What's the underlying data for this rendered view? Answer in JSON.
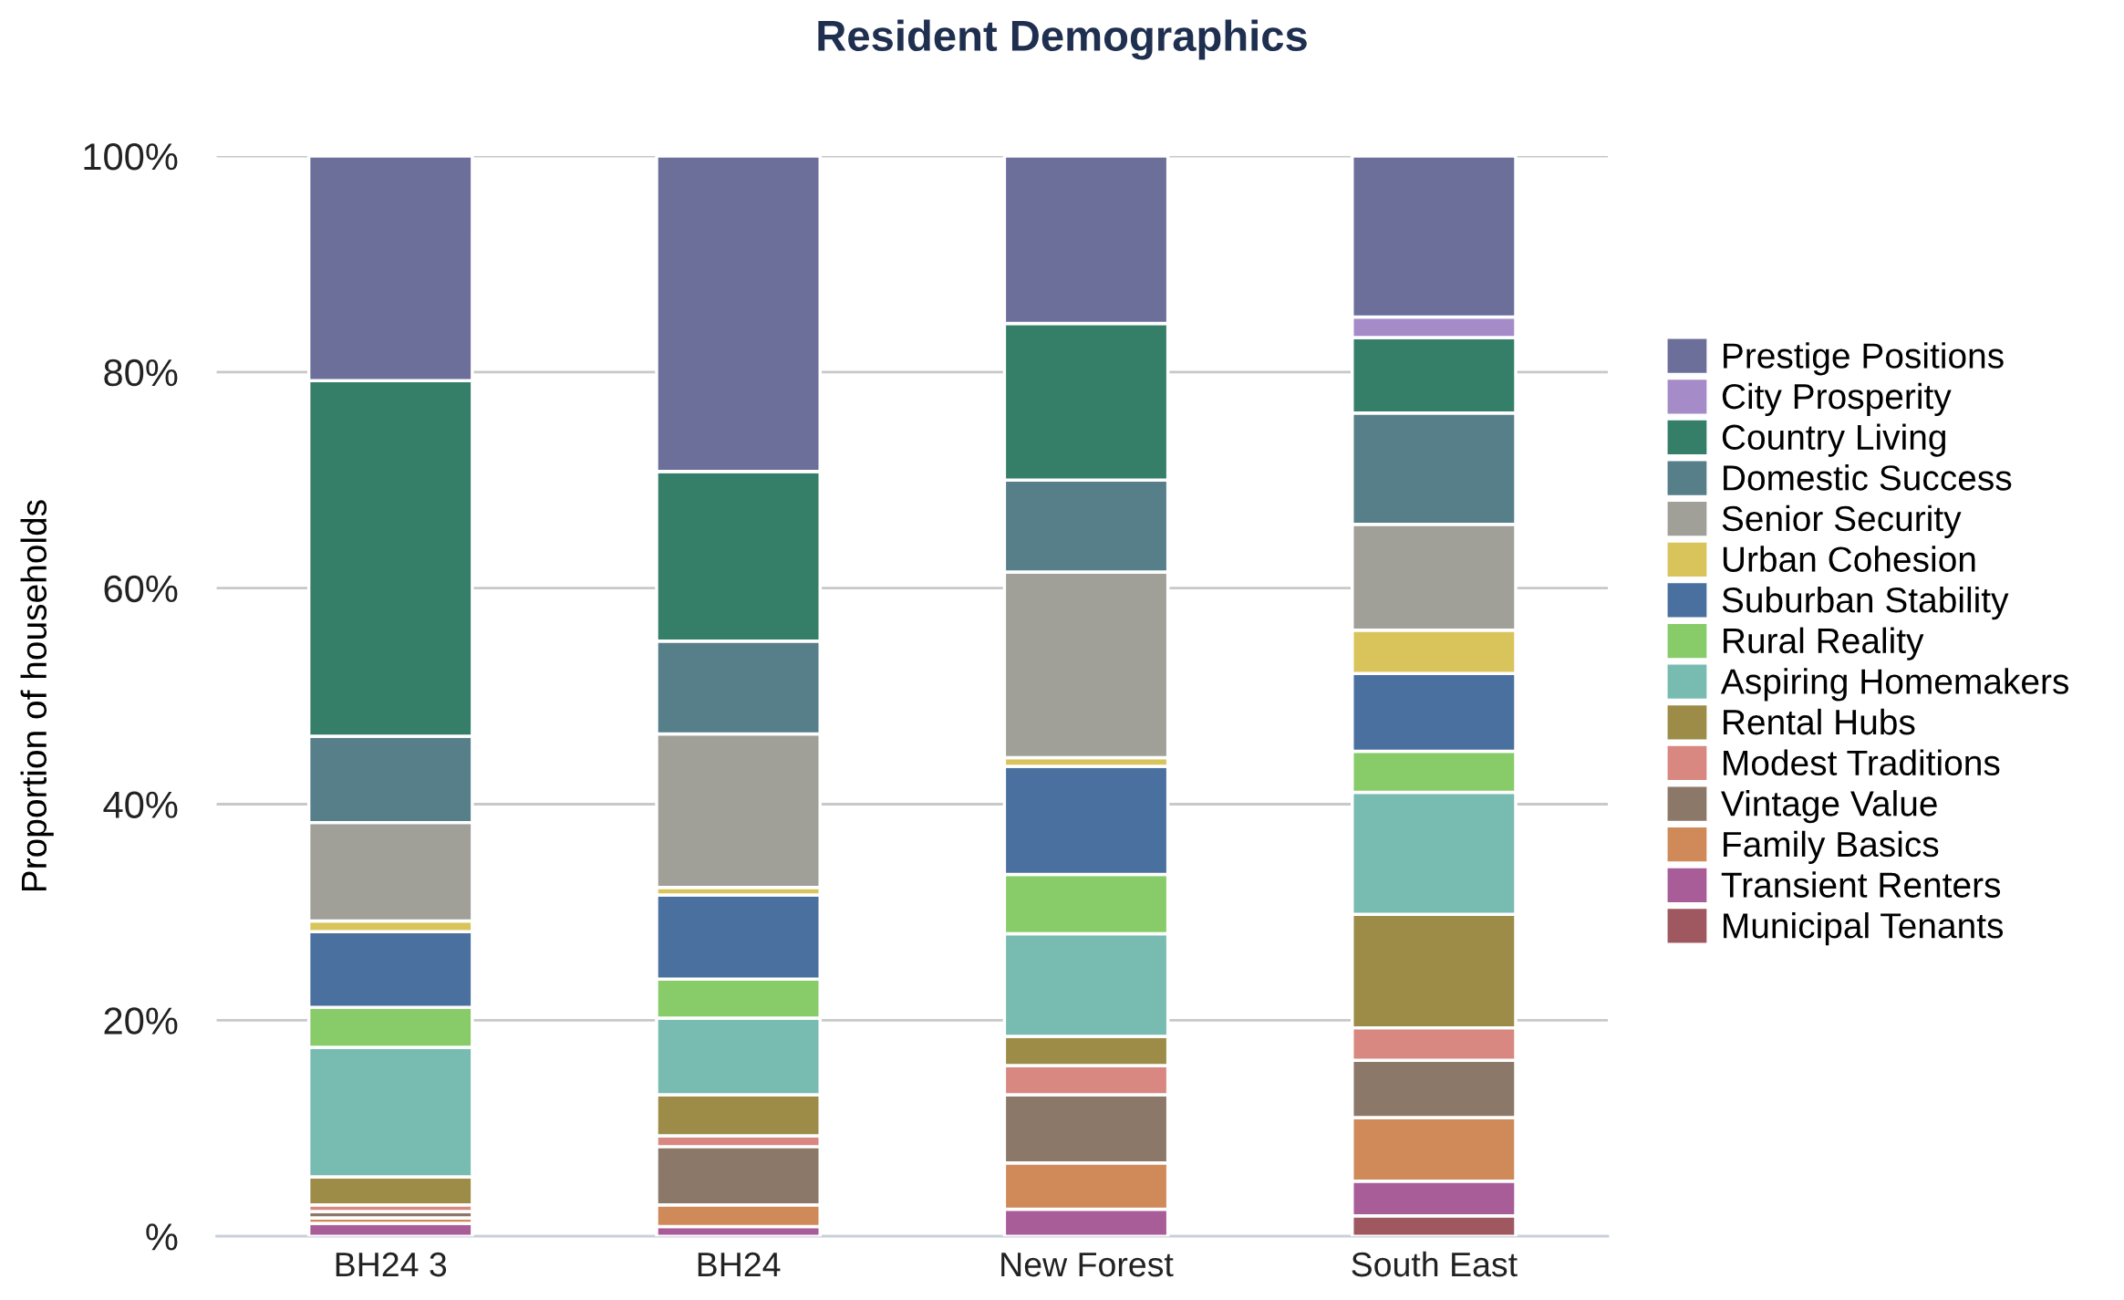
{
  "chart_data": {
    "type": "bar",
    "title": "Resident Demographics",
    "ylabel": "Proportion of households",
    "stacked": true,
    "categories": [
      "BH24 3",
      "BH24",
      "New Forest",
      "South East"
    ],
    "series": [
      {
        "name": "Municipal Tenants",
        "color": "#a05860",
        "values": [
          0,
          0,
          0,
          1.9
        ]
      },
      {
        "name": "Transient Renters",
        "color": "#a85c98",
        "values": [
          1.2,
          0.9,
          2.5,
          3.2
        ]
      },
      {
        "name": "Family Basics",
        "color": "#d08a5a",
        "values": [
          0.5,
          2.0,
          4.3,
          5.9
        ]
      },
      {
        "name": "Vintage Value",
        "color": "#8c7868",
        "values": [
          0.6,
          5.4,
          6.3,
          5.3
        ]
      },
      {
        "name": "Modest Traditions",
        "color": "#d88880",
        "values": [
          0.6,
          1.0,
          2.7,
          3.0
        ]
      },
      {
        "name": "Rental Hubs",
        "color": "#9c8c48",
        "values": [
          2.6,
          3.8,
          2.7,
          10.5
        ]
      },
      {
        "name": "Aspiring Homemakers",
        "color": "#78bbb0",
        "values": [
          12.0,
          7.1,
          9.5,
          11.3
        ]
      },
      {
        "name": "Rural Reality",
        "color": "#88cc6a",
        "values": [
          3.7,
          3.6,
          5.5,
          3.8
        ]
      },
      {
        "name": "Suburban Stability",
        "color": "#4a70a0",
        "values": [
          7.0,
          7.8,
          10.0,
          7.2
        ]
      },
      {
        "name": "Urban Cohesion",
        "color": "#d9c45c",
        "values": [
          1.0,
          0.7,
          0.8,
          4.0
        ]
      },
      {
        "name": "Senior Security",
        "color": "#a0a098",
        "values": [
          9.1,
          14.2,
          17.2,
          9.8
        ]
      },
      {
        "name": "Domestic Success",
        "color": "#567f8a",
        "values": [
          8.0,
          8.6,
          8.5,
          10.3
        ]
      },
      {
        "name": "Country Living",
        "color": "#357f68",
        "values": [
          32.9,
          15.7,
          14.5,
          7.0
        ]
      },
      {
        "name": "City Prosperity",
        "color": "#a58cc8",
        "values": [
          0,
          0,
          0,
          1.9
        ]
      },
      {
        "name": "Prestige Positions",
        "color": "#6b6f9a",
        "values": [
          20.8,
          29.2,
          15.5,
          14.9
        ]
      }
    ],
    "ylim": [
      0,
      100
    ],
    "yticks": [
      {
        "value": 0,
        "label": "%"
      },
      {
        "value": 20,
        "label": "20%"
      },
      {
        "value": 40,
        "label": "40%"
      },
      {
        "value": 60,
        "label": "60%"
      },
      {
        "value": 80,
        "label": "80%"
      },
      {
        "value": 100,
        "label": "100%"
      }
    ],
    "grid": "y",
    "legend": "right"
  }
}
